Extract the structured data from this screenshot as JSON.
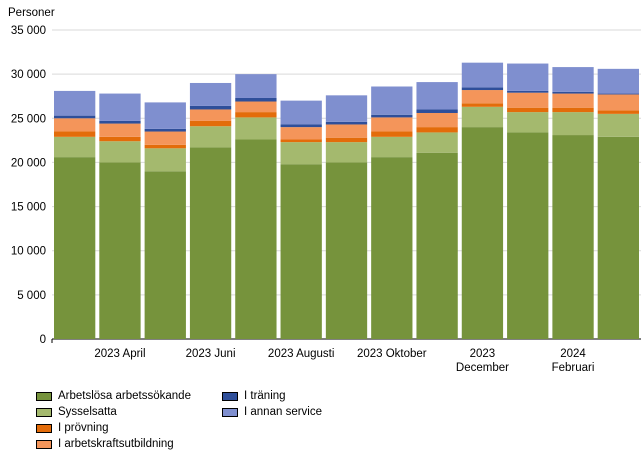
{
  "chart_data": {
    "type": "bar",
    "stacked": true,
    "ylabel": "Personer",
    "ylim": [
      0,
      35000
    ],
    "yticks": [
      0,
      5000,
      10000,
      15000,
      20000,
      25000,
      30000,
      35000
    ],
    "ytick_labels": [
      "0",
      "5 000",
      "10 000",
      "15 000",
      "20 000",
      "25 000",
      "30 000",
      "35 000"
    ],
    "grid": true,
    "legend_position": "bottom-left",
    "x_labels": [
      {
        "index": 1,
        "lines": [
          "2023 April"
        ]
      },
      {
        "index": 3,
        "lines": [
          "2023 Juni"
        ]
      },
      {
        "index": 5,
        "lines": [
          "2023 Augusti"
        ]
      },
      {
        "index": 7,
        "lines": [
          "2023 Oktober"
        ]
      },
      {
        "index": 9,
        "lines": [
          "2023",
          "December"
        ]
      },
      {
        "index": 11,
        "lines": [
          "2024",
          "Februari"
        ]
      }
    ],
    "series": [
      {
        "name": "Arbetslösa arbetssökande",
        "color": "#76933c",
        "values": [
          20600,
          20000,
          19000,
          21700,
          22600,
          19800,
          20000,
          20600,
          21100,
          24000,
          23400,
          23100,
          22900
        ]
      },
      {
        "name": "Sysselsatta",
        "color": "#a4b96e",
        "values": [
          2300,
          2400,
          2600,
          2400,
          2500,
          2500,
          2300,
          2300,
          2300,
          2300,
          2300,
          2600,
          2600
        ]
      },
      {
        "name": "I prövning",
        "color": "#e36c0a",
        "values": [
          600,
          500,
          400,
          600,
          600,
          300,
          500,
          600,
          600,
          400,
          500,
          500,
          400
        ]
      },
      {
        "name": "I arbetskraftsutbildning",
        "color": "#f4955a",
        "values": [
          1500,
          1500,
          1500,
          1300,
          1200,
          1400,
          1500,
          1600,
          1600,
          1500,
          1700,
          1600,
          1800
        ]
      },
      {
        "name": "I träning",
        "color": "#2f4f9a",
        "values": [
          300,
          300,
          300,
          400,
          400,
          300,
          300,
          300,
          400,
          300,
          200,
          200,
          100
        ]
      },
      {
        "name": "I annan service",
        "color": "#7f8fcf",
        "values": [
          2800,
          3100,
          3000,
          2600,
          2700,
          2700,
          3000,
          3200,
          3100,
          2800,
          3100,
          2800,
          2800
        ]
      }
    ]
  }
}
